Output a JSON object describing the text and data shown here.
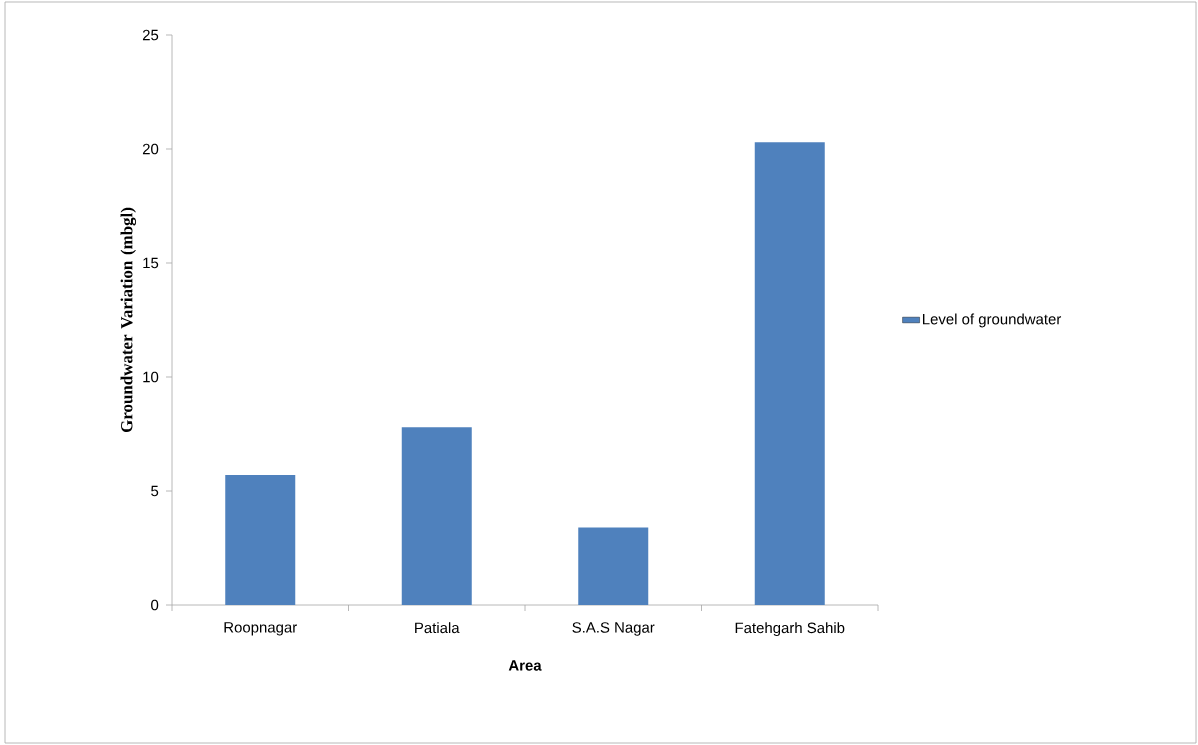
{
  "chart_data": {
    "type": "bar",
    "xlabel": "Area",
    "ylabel": "Groundwater Variation (mbgl)",
    "categories": [
      "Roopnagar",
      "Patiala",
      "S.A.S Nagar",
      "Fatehgarh Sahib"
    ],
    "series": [
      {
        "name": "Level of groundwater",
        "color": "#4f81bd",
        "values": [
          5.7,
          7.8,
          3.4,
          20.3
        ]
      }
    ],
    "ylim": [
      0,
      25
    ],
    "yticks": [
      0,
      5,
      10,
      15,
      20,
      25
    ],
    "grid": false,
    "legend": "right"
  }
}
